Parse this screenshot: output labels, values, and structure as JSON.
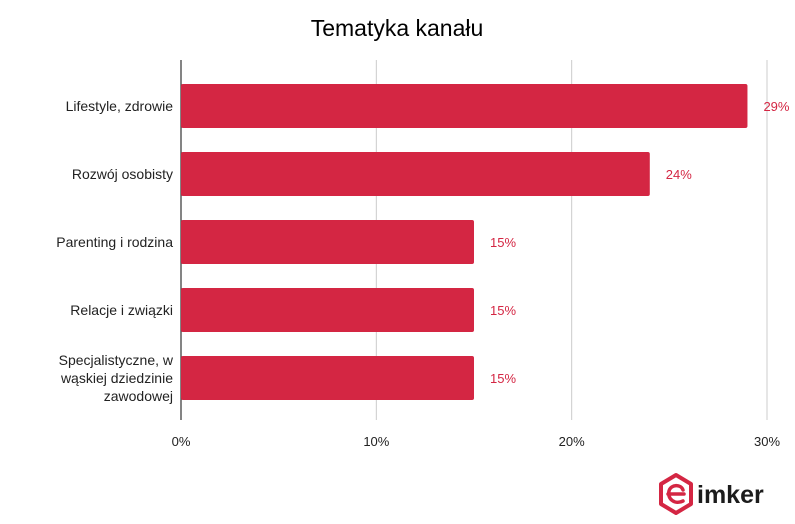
{
  "chart_data": {
    "type": "bar",
    "orientation": "horizontal",
    "title": "Tematyka kanału",
    "categories": [
      [
        "Lifestyle, zdrowie"
      ],
      [
        "Rozwój osobisty"
      ],
      [
        "Parenting i rodzina"
      ],
      [
        "Relacje i związki"
      ],
      [
        "Specjalistyczne, w",
        "wąskiej dziedzinie",
        "zawodowej"
      ]
    ],
    "values": [
      29,
      24,
      15,
      15,
      15
    ],
    "value_labels": [
      "29%",
      "24%",
      "15%",
      "15%",
      "15%"
    ],
    "x_ticks": [
      0,
      10,
      20,
      30
    ],
    "x_tick_labels": [
      "0%",
      "10%",
      "20%",
      "30%"
    ],
    "xlim": [
      0,
      30
    ],
    "grid": "vertical",
    "legend": "none",
    "bar_color": "#d42643",
    "label_color": "#d42643"
  },
  "logo": {
    "text": "imker",
    "mark_color": "#d42643"
  }
}
